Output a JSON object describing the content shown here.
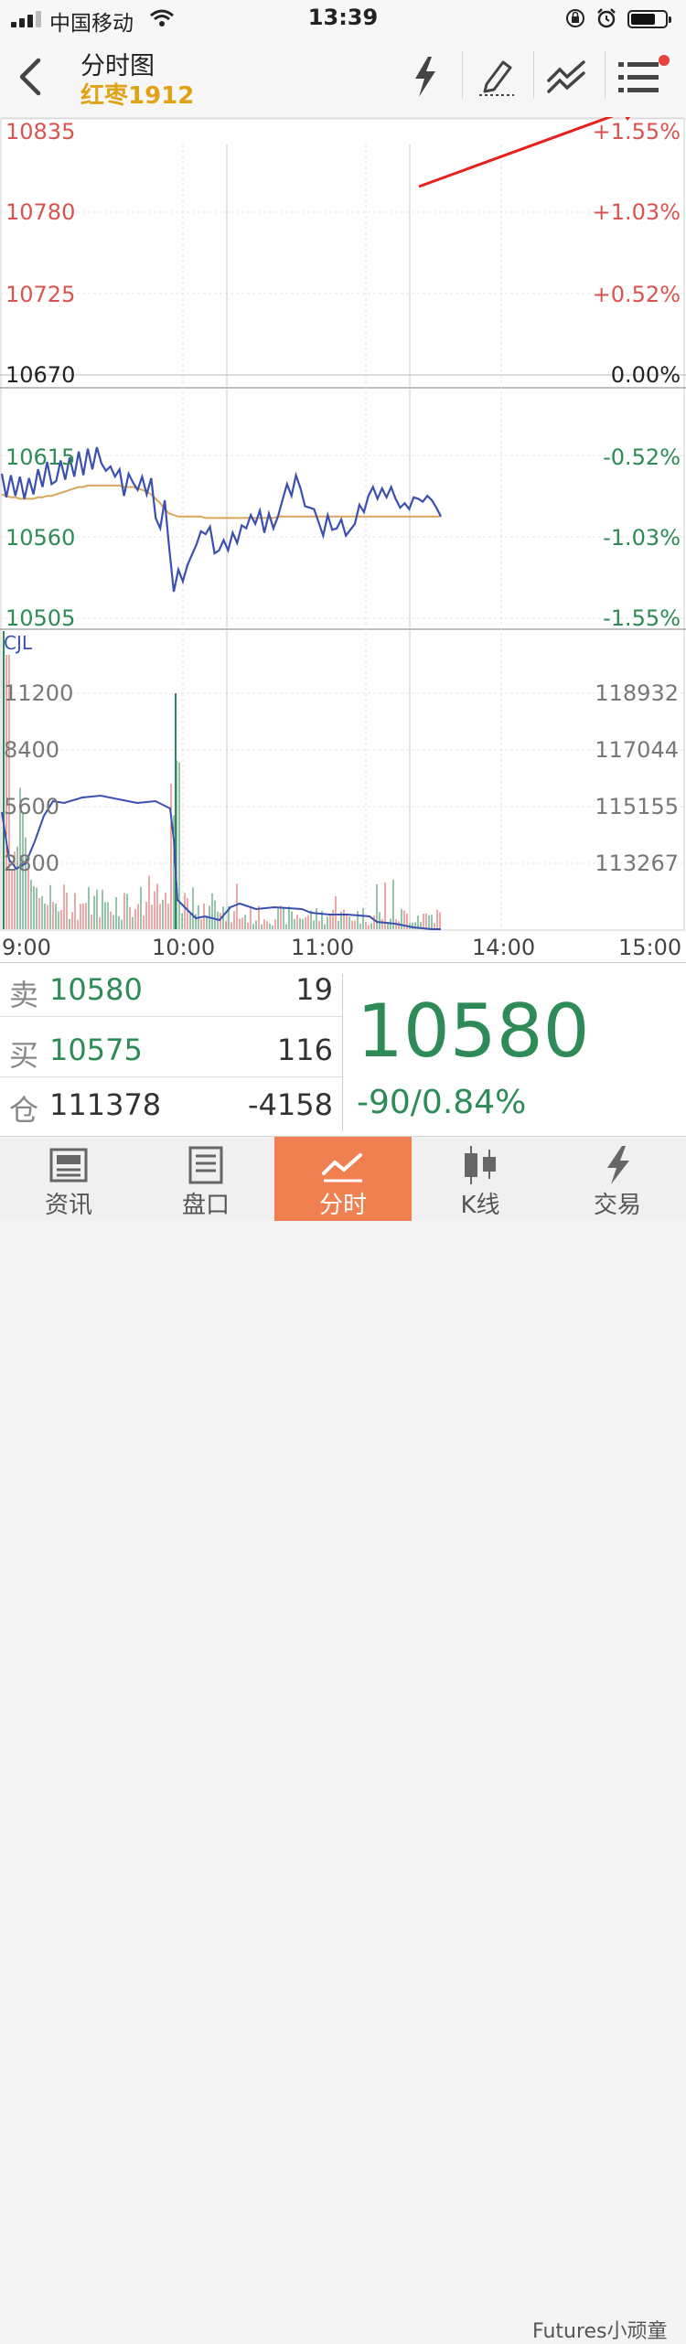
{
  "status_bar": {
    "carrier": "中国移动",
    "time": "13:39"
  },
  "header": {
    "title": "分时图",
    "symbol": "红枣1912"
  },
  "chart_data": {
    "type": "line",
    "price_axis": {
      "left_labels": [
        "10835",
        "10780",
        "10725",
        "10670",
        "10615",
        "10560",
        "10505"
      ],
      "right_labels": [
        "+1.55%",
        "+1.03%",
        "+0.52%",
        "0.00%",
        "-0.52%",
        "-1.03%",
        "-1.55%"
      ],
      "ylim": [
        10505,
        10835
      ],
      "reference_price": 10670
    },
    "volume_axis": {
      "indicator": "CJL",
      "left_labels": [
        "11200",
        "8400",
        "5600",
        "2800"
      ],
      "right_labels": [
        "118932",
        "117044",
        "115155",
        "113267"
      ]
    },
    "time_labels": [
      "9:00",
      "10:00",
      "11:00",
      "14:00",
      "15:00"
    ],
    "series": [
      {
        "values": [
          10603,
          10587,
          10602,
          10588,
          10601,
          10586,
          10600,
          10589,
          10606,
          10594,
          10611,
          10596,
          10598,
          10612,
          10599,
          10614,
          10601,
          10618,
          10602,
          10620,
          10606,
          10621,
          10610,
          10605,
          10608,
          10601,
          10606,
          10588,
          10603,
          10597,
          10592,
          10601,
          10589,
          10600,
          10573,
          10566,
          10585,
          10552,
          10523,
          10538,
          10530,
          10541,
          10548,
          10555,
          10564,
          10562,
          10567,
          10549,
          10551,
          10558,
          10551,
          10563,
          10556,
          10568,
          10566,
          10575,
          10569,
          10578,
          10563,
          10576,
          10566,
          10574,
          10585,
          10596,
          10588,
          10602,
          10593,
          10581,
          10580,
          10579,
          10570,
          10561,
          10575,
          10565,
          10566,
          10572,
          10561,
          10565,
          10569,
          10582,
          10577,
          10588,
          10594,
          10586,
          10593,
          10587,
          10594,
          10586,
          10580,
          10583,
          10579,
          10587,
          10586,
          10584,
          10588,
          10585,
          10580,
          10574
        ]
      },
      {
        "values": [
          10589,
          10588,
          10587,
          10587,
          10586,
          10586,
          10586,
          10586,
          10587,
          10587,
          10588,
          10588,
          10589,
          10590,
          10591,
          10592,
          10593,
          10594,
          10594,
          10595,
          10595,
          10595,
          10595,
          10595,
          10595,
          10595,
          10595,
          10594,
          10594,
          10594,
          10593,
          10592,
          10591,
          10589,
          10586,
          10583,
          10579,
          10576,
          10575,
          10574,
          10574,
          10574,
          10574,
          10574,
          10574,
          10573,
          10573,
          10573,
          10573,
          10573,
          10573,
          10573,
          10573,
          10573,
          10573,
          10573,
          10573,
          10573,
          10573,
          10573,
          10573,
          10574,
          10574,
          10574,
          10574,
          10574,
          10574,
          10574,
          10574,
          10574,
          10574,
          10574,
          10574,
          10574,
          10574,
          10574,
          10574,
          10574,
          10574,
          10574,
          10574,
          10574,
          10574,
          10574,
          10574,
          10574,
          10574,
          10574,
          10574,
          10574,
          10574,
          10574,
          10574,
          10574,
          10574,
          10574,
          10574,
          10574
        ]
      }
    ]
  },
  "quote": {
    "sell_label": "卖",
    "sell_price": "10580",
    "sell_volume": "19",
    "buy_label": "买",
    "buy_price": "10575",
    "buy_volume": "116",
    "oi_label": "仓",
    "open_interest": "111378",
    "oi_change": "-4158",
    "last_price": "10580",
    "change": "-90/0.84%"
  },
  "tabs": [
    {
      "label": "资讯",
      "icon": "news-icon"
    },
    {
      "label": "盘口",
      "icon": "orderbook-icon"
    },
    {
      "label": "分时",
      "icon": "timeshare-icon",
      "active": true
    },
    {
      "label": "K线",
      "icon": "kline-icon"
    },
    {
      "label": "交易",
      "icon": "lightning-icon"
    }
  ],
  "watermark": "Futures小顽童",
  "colors": {
    "accent": "#f08050",
    "up": "#d9534f",
    "down": "#2e8b57",
    "price_line": "#3a50b0",
    "avg_line": "#d9a65c",
    "symbol": "#e0a316"
  }
}
